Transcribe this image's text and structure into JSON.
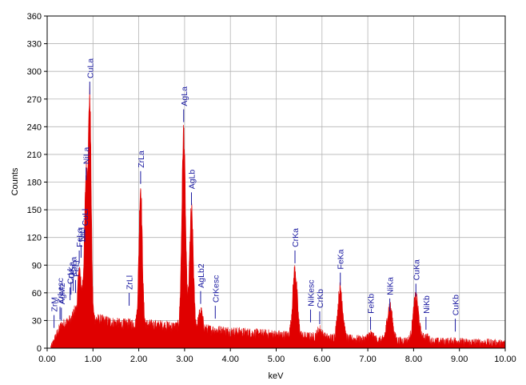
{
  "chart_data": {
    "type": "area",
    "xlabel": "keV",
    "ylabel": "Counts",
    "xlim": [
      0,
      10
    ],
    "ylim": [
      0,
      360
    ],
    "grid": true,
    "x_ticks": [
      "0.00",
      "1.00",
      "2.00",
      "3.00",
      "4.00",
      "5.00",
      "6.00",
      "7.00",
      "8.00",
      "9.00",
      "10.00"
    ],
    "y_ticks": [
      "0",
      "30",
      "60",
      "90",
      "120",
      "150",
      "180",
      "210",
      "240",
      "270",
      "300",
      "330",
      "360"
    ],
    "background_level": [
      [
        0.1,
        2
      ],
      [
        0.2,
        14
      ],
      [
        0.3,
        24
      ],
      [
        0.5,
        30
      ],
      [
        0.8,
        34
      ],
      [
        1.2,
        30
      ],
      [
        1.6,
        26
      ],
      [
        2.0,
        26
      ],
      [
        2.6,
        24
      ],
      [
        3.5,
        20
      ],
      [
        4.5,
        16
      ],
      [
        5.5,
        13
      ],
      [
        6.5,
        10
      ],
      [
        7.5,
        8
      ],
      [
        8.5,
        7
      ],
      [
        9.5,
        6
      ],
      [
        10.0,
        5
      ]
    ],
    "peaks": [
      {
        "x": 0.52,
        "y": 28
      },
      {
        "x": 0.6,
        "y": 40
      },
      {
        "x": 0.7,
        "y": 86
      },
      {
        "x": 0.78,
        "y": 60
      },
      {
        "x": 0.85,
        "y": 180
      },
      {
        "x": 0.93,
        "y": 270
      },
      {
        "x": 1.74,
        "y": 18
      },
      {
        "x": 2.04,
        "y": 175
      },
      {
        "x": 2.98,
        "y": 235
      },
      {
        "x": 3.15,
        "y": 150
      },
      {
        "x": 3.35,
        "y": 40
      },
      {
        "x": 3.65,
        "y": 18
      },
      {
        "x": 5.41,
        "y": 85
      },
      {
        "x": 5.95,
        "y": 20
      },
      {
        "x": 6.4,
        "y": 65
      },
      {
        "x": 7.06,
        "y": 15
      },
      {
        "x": 7.48,
        "y": 45
      },
      {
        "x": 8.05,
        "y": 55
      },
      {
        "x": 8.27,
        "y": 12
      },
      {
        "x": 8.91,
        "y": 8
      }
    ],
    "peak_labels": [
      {
        "text": "ZrM",
        "x": 0.15,
        "y": 22
      },
      {
        "text": "ZrLesc",
        "x": 0.28,
        "y": 31
      },
      {
        "text": "AgMz",
        "x": 0.31,
        "y": 30
      },
      {
        "text": "OKa",
        "x": 0.52,
        "y": 58
      },
      {
        "text": "CrLl",
        "x": 0.5,
        "y": 52
      },
      {
        "text": "CrLa",
        "x": 0.57,
        "y": 62
      },
      {
        "text": "FeLl",
        "x": 0.62,
        "y": 60
      },
      {
        "text": "CuLl",
        "x": 0.82,
        "y": 115
      },
      {
        "text": "FeLa",
        "x": 0.7,
        "y": 92
      },
      {
        "text": "NiLl",
        "x": 0.74,
        "y": 98
      },
      {
        "text": "NiLa",
        "x": 0.85,
        "y": 182
      },
      {
        "text": "CuLa",
        "x": 0.93,
        "y": 275
      },
      {
        "text": "ZrLl",
        "x": 1.79,
        "y": 46
      },
      {
        "text": "ZrLa",
        "x": 2.04,
        "y": 178
      },
      {
        "text": "AgLa",
        "x": 2.98,
        "y": 245
      },
      {
        "text": "AgLb",
        "x": 3.15,
        "y": 155
      },
      {
        "text": "AgLb2",
        "x": 3.35,
        "y": 48
      },
      {
        "text": "CrKesc",
        "x": 3.67,
        "y": 32
      },
      {
        "text": "CrKa",
        "x": 5.41,
        "y": 92
      },
      {
        "text": "NiKesc",
        "x": 5.75,
        "y": 28
      },
      {
        "text": "CrKb",
        "x": 5.95,
        "y": 26
      },
      {
        "text": "FeKa",
        "x": 6.4,
        "y": 68
      },
      {
        "text": "FeKb",
        "x": 7.06,
        "y": 20
      },
      {
        "text": "NiKa",
        "x": 7.48,
        "y": 40
      },
      {
        "text": "CuKa",
        "x": 8.05,
        "y": 56
      },
      {
        "text": "NiKb",
        "x": 8.27,
        "y": 20
      },
      {
        "text": "CuKb",
        "x": 8.91,
        "y": 18
      }
    ],
    "colors": {
      "fill": "#e00000",
      "labels": "#1a1aa0",
      "grid": "#b4b4b4",
      "axis": "#000000"
    }
  }
}
